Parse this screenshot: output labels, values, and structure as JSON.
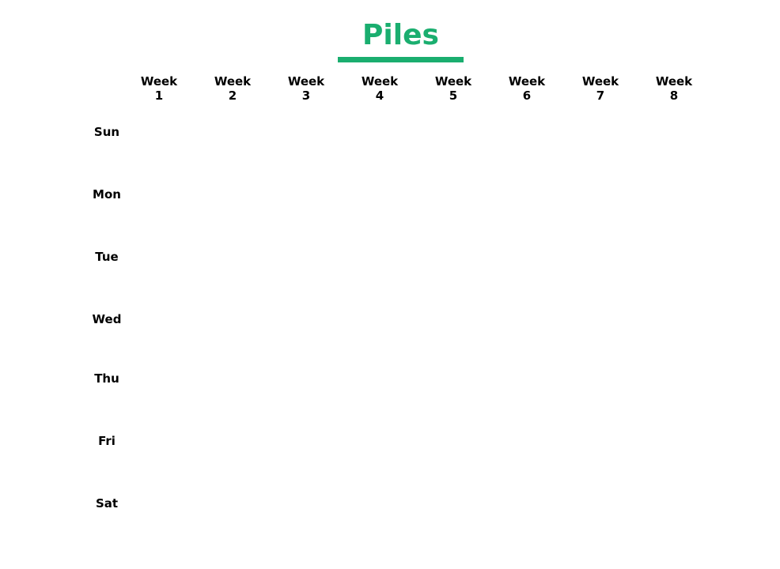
{
  "title": "Piles",
  "accent_color": "#1aae6f",
  "weeks": [
    {
      "word": "Week",
      "number": "1"
    },
    {
      "word": "Week",
      "number": "2"
    },
    {
      "word": "Week",
      "number": "3"
    },
    {
      "word": "Week",
      "number": "4"
    },
    {
      "word": "Week",
      "number": "5"
    },
    {
      "word": "Week",
      "number": "6"
    },
    {
      "word": "Week",
      "number": "7"
    },
    {
      "word": "Week",
      "number": "8"
    }
  ],
  "days": [
    "Sun",
    "Mon",
    "Tue",
    "Wed",
    "Thu",
    "Fri",
    "Sat"
  ]
}
